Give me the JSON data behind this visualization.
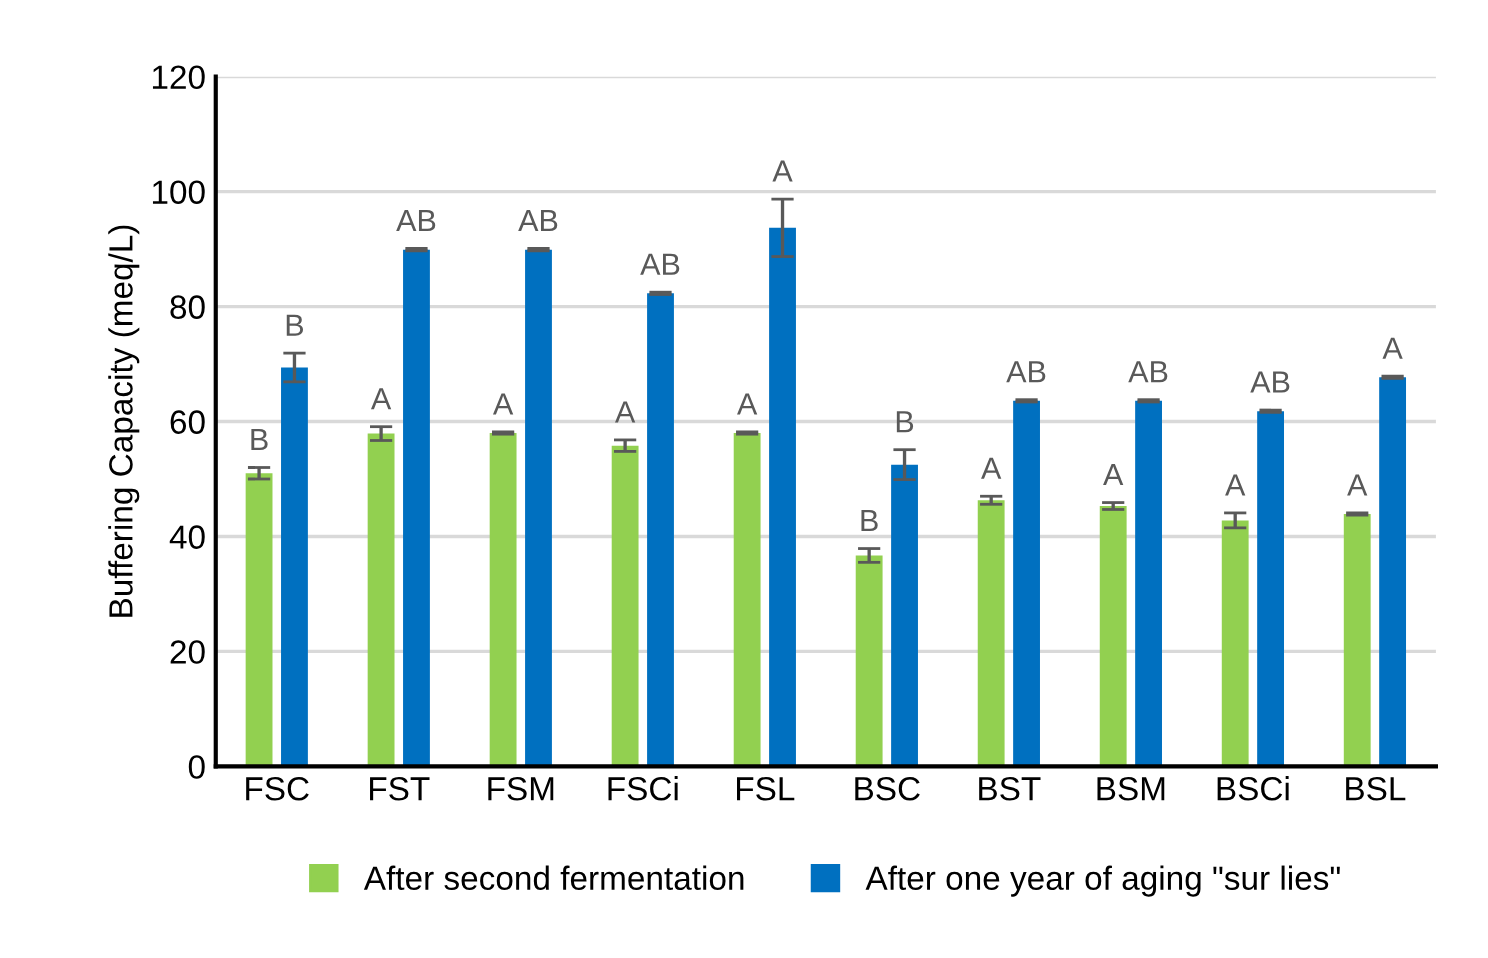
{
  "chart_data": {
    "type": "bar",
    "ylabel": "Buffering Capacity (meq/L)",
    "categories": [
      "FSC",
      "FST",
      "FSM",
      "FSCi",
      "FSL",
      "BSC",
      "BST",
      "BSM",
      "BSCi",
      "BSL"
    ],
    "series": [
      {
        "name": "After second fermentation",
        "color": "#92d050",
        "values": [
          51.0,
          57.9,
          58.0,
          55.8,
          58.0,
          36.7,
          46.3,
          45.3,
          42.8,
          43.9
        ],
        "errors": [
          1.0,
          1.2,
          0.2,
          1.0,
          0.2,
          1.2,
          0.7,
          0.6,
          1.3,
          0.2
        ]
      },
      {
        "name": "After one year of aging \"sur lies\"",
        "color": "#0070c0",
        "values": [
          69.4,
          89.9,
          89.9,
          82.3,
          93.7,
          52.5,
          63.6,
          63.6,
          61.8,
          67.7
        ],
        "errors": [
          2.5,
          0.2,
          0.2,
          0.2,
          5.0,
          2.6,
          0.2,
          0.2,
          0.2,
          0.2
        ]
      }
    ],
    "annotations": [
      {
        "text": "B",
        "x": "FSC",
        "y": 52
      },
      {
        "text": "B",
        "x": "FSC",
        "y": 71.9
      },
      {
        "text": "A",
        "x": "FST",
        "y": 59.1
      },
      {
        "text": "AB",
        "x": "FST",
        "y": 90.1
      },
      {
        "text": "A",
        "x": "FSM",
        "y": 58.2
      },
      {
        "text": "AB",
        "x": "FSM",
        "y": 90.1
      },
      {
        "text": "A",
        "x": "FSCi",
        "y": 56.8
      },
      {
        "text": "AB",
        "x": "FSCi",
        "y": 82.5
      },
      {
        "text": "A",
        "x": "FSL",
        "y": 58.2
      },
      {
        "text": "A",
        "x": "FSL",
        "y": 98.7
      },
      {
        "text": "B",
        "x": "BSC",
        "y": 37.9
      },
      {
        "text": "B",
        "x": "BSC",
        "y": 55.1
      },
      {
        "text": "A",
        "x": "BST",
        "y": 47.0
      },
      {
        "text": "AB",
        "x": "BST",
        "y": 63.8
      },
      {
        "text": "A",
        "x": "BSM",
        "y": 45.9
      },
      {
        "text": "AB",
        "x": "BSM",
        "y": 63.8
      },
      {
        "text": "A",
        "x": "BSCi",
        "y": 44.1
      },
      {
        "text": "AB",
        "x": "BSCi",
        "y": 62.0
      },
      {
        "text": "A",
        "x": "BSL",
        "y": 44.1
      },
      {
        "text": "A",
        "x": "BSL",
        "y": 67.9
      }
    ],
    "ylim": [
      0,
      120
    ],
    "yticks": [
      0,
      20,
      40,
      60,
      80,
      100,
      120
    ],
    "grid": "y",
    "legend": "bottom"
  }
}
